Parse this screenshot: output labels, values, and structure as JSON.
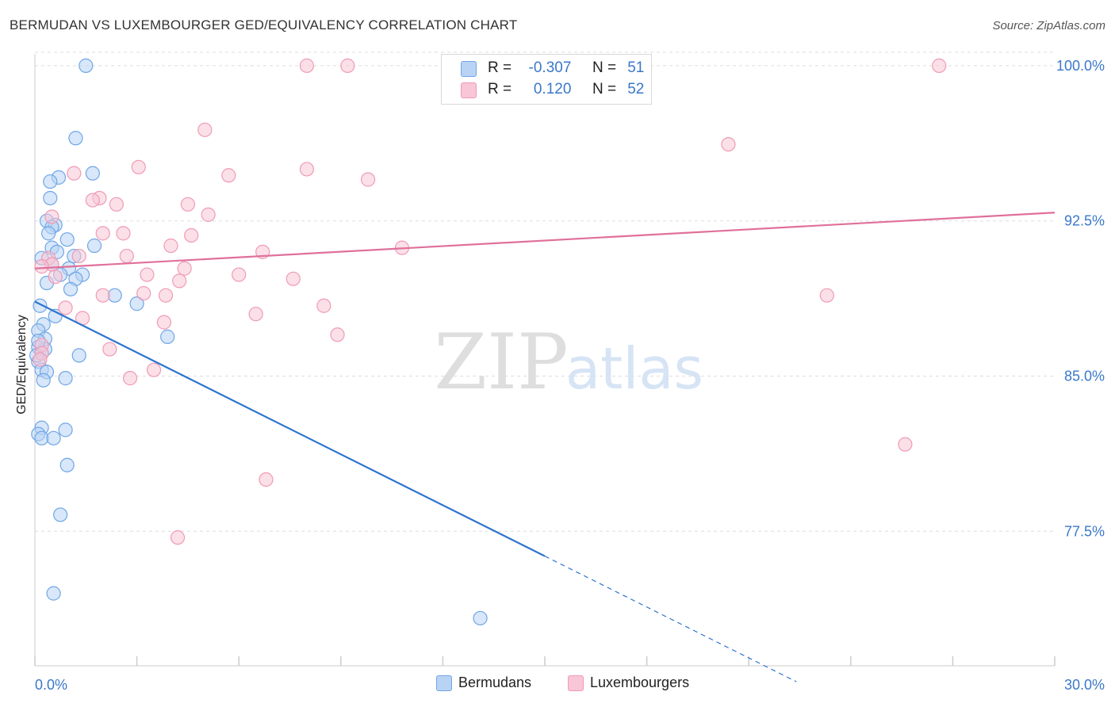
{
  "header": {
    "title": "BERMUDAN VS LUXEMBOURGER GED/EQUIVALENCY CORRELATION CHART",
    "source": "Source: ZipAtlas.com"
  },
  "watermark": {
    "zip": "ZIP",
    "atlas": "atlas"
  },
  "legend": {
    "rows": [
      {
        "r_label": "R =",
        "r_value": "-0.307",
        "n_label": "N =",
        "n_value": "51",
        "color": "#6fa6e6"
      },
      {
        "r_label": "R =",
        "r_value": "0.120",
        "n_label": "N =",
        "n_value": "52",
        "color": "#f09ab6"
      }
    ]
  },
  "bottom_legend": {
    "bermudans": "Bermudans",
    "luxembourgers": "Luxembourgers"
  },
  "colors": {
    "blue_fill": "#b8d3f4",
    "blue_stroke": "#6fa6e6",
    "blue_line": "#2f74d0",
    "pink_fill": "#f8c6d6",
    "pink_stroke": "#f09ab6",
    "pink_line": "#e0709a",
    "axis_text": "#3a78c9",
    "grid": "#dddddd"
  },
  "chart_data": {
    "type": "scatter",
    "title": "BERMUDAN VS LUXEMBOURGER GED/EQUIVALENCY CORRELATION CHART",
    "xlabel": "",
    "ylabel": "GED/Equivalency",
    "xlim": [
      0,
      30
    ],
    "ylim": [
      71.0,
      100.8
    ],
    "x_tick_labels": [
      {
        "value": 0,
        "label": "0.0%"
      },
      {
        "value": 30,
        "label": "30.0%"
      }
    ],
    "y_tick_labels": [
      {
        "value": 100.0,
        "label": "100.0%"
      },
      {
        "value": 92.5,
        "label": "92.5%"
      },
      {
        "value": 85.0,
        "label": "85.0%"
      },
      {
        "value": 77.5,
        "label": "77.5%"
      }
    ],
    "grid": "horizontal dashed",
    "legend_position": "top-center",
    "series": [
      {
        "name": "Bermudans",
        "R": -0.307,
        "N": 51,
        "trend": {
          "x0": 0,
          "y0": 88.6,
          "x1": 15,
          "y1": 76.3,
          "dashed_to_x": 22.4
        },
        "points": [
          [
            1.5,
            100.0
          ],
          [
            1.2,
            96.5
          ],
          [
            1.7,
            94.8
          ],
          [
            0.7,
            94.6
          ],
          [
            0.45,
            94.4
          ],
          [
            0.45,
            93.6
          ],
          [
            0.35,
            92.5
          ],
          [
            0.6,
            92.3
          ],
          [
            0.5,
            92.2
          ],
          [
            0.4,
            91.9
          ],
          [
            0.95,
            91.6
          ],
          [
            1.75,
            91.3
          ],
          [
            0.5,
            91.2
          ],
          [
            0.65,
            91.0
          ],
          [
            1.15,
            90.8
          ],
          [
            0.2,
            90.7
          ],
          [
            0.5,
            90.4
          ],
          [
            1.0,
            90.2
          ],
          [
            0.75,
            89.9
          ],
          [
            1.4,
            89.9
          ],
          [
            1.2,
            89.7
          ],
          [
            0.35,
            89.5
          ],
          [
            1.05,
            89.2
          ],
          [
            2.35,
            88.9
          ],
          [
            3.0,
            88.5
          ],
          [
            0.15,
            88.4
          ],
          [
            0.6,
            87.9
          ],
          [
            0.25,
            87.5
          ],
          [
            0.1,
            87.2
          ],
          [
            0.3,
            86.8
          ],
          [
            3.9,
            86.9
          ],
          [
            0.1,
            86.4
          ],
          [
            0.3,
            86.3
          ],
          [
            0.2,
            86.1
          ],
          [
            1.3,
            86.0
          ],
          [
            0.1,
            85.7
          ],
          [
            0.2,
            85.3
          ],
          [
            0.35,
            85.2
          ],
          [
            0.9,
            84.9
          ],
          [
            0.25,
            84.8
          ],
          [
            0.2,
            82.5
          ],
          [
            0.9,
            82.4
          ],
          [
            0.1,
            82.2
          ],
          [
            0.2,
            82.0
          ],
          [
            0.55,
            82.0
          ],
          [
            0.95,
            80.7
          ],
          [
            0.75,
            78.3
          ],
          [
            0.55,
            74.5
          ],
          [
            13.1,
            73.3
          ],
          [
            0.1,
            86.7
          ],
          [
            0.05,
            86.0
          ]
        ]
      },
      {
        "name": "Luxembourgers",
        "R": 0.12,
        "N": 52,
        "trend": {
          "x0": 0,
          "y0": 90.2,
          "x1": 30,
          "y1": 92.9
        },
        "points": [
          [
            8.0,
            100.0
          ],
          [
            9.2,
            100.0
          ],
          [
            26.6,
            100.0
          ],
          [
            5.0,
            96.9
          ],
          [
            20.4,
            96.2
          ],
          [
            3.05,
            95.1
          ],
          [
            8.0,
            95.0
          ],
          [
            1.15,
            94.8
          ],
          [
            5.7,
            94.7
          ],
          [
            9.8,
            94.5
          ],
          [
            1.9,
            93.6
          ],
          [
            1.7,
            93.5
          ],
          [
            2.4,
            93.3
          ],
          [
            4.5,
            93.3
          ],
          [
            5.1,
            92.8
          ],
          [
            0.5,
            92.7
          ],
          [
            2.0,
            91.9
          ],
          [
            2.6,
            91.9
          ],
          [
            4.6,
            91.8
          ],
          [
            4.0,
            91.3
          ],
          [
            10.8,
            91.2
          ],
          [
            6.7,
            91.0
          ],
          [
            2.7,
            90.8
          ],
          [
            1.3,
            90.8
          ],
          [
            0.4,
            90.7
          ],
          [
            0.5,
            90.4
          ],
          [
            4.4,
            90.2
          ],
          [
            0.2,
            90.3
          ],
          [
            3.3,
            89.9
          ],
          [
            6.0,
            89.9
          ],
          [
            7.6,
            89.7
          ],
          [
            4.25,
            89.6
          ],
          [
            0.6,
            89.8
          ],
          [
            3.2,
            89.0
          ],
          [
            3.85,
            88.9
          ],
          [
            2.0,
            88.9
          ],
          [
            23.3,
            88.9
          ],
          [
            8.5,
            88.4
          ],
          [
            0.9,
            88.3
          ],
          [
            6.5,
            88.0
          ],
          [
            1.4,
            87.8
          ],
          [
            3.8,
            87.6
          ],
          [
            8.9,
            87.0
          ],
          [
            0.2,
            86.5
          ],
          [
            2.2,
            86.3
          ],
          [
            0.2,
            86.1
          ],
          [
            3.5,
            85.3
          ],
          [
            2.8,
            84.9
          ],
          [
            25.6,
            81.7
          ],
          [
            6.8,
            80.0
          ],
          [
            4.2,
            77.2
          ],
          [
            0.15,
            85.8
          ]
        ]
      }
    ]
  }
}
